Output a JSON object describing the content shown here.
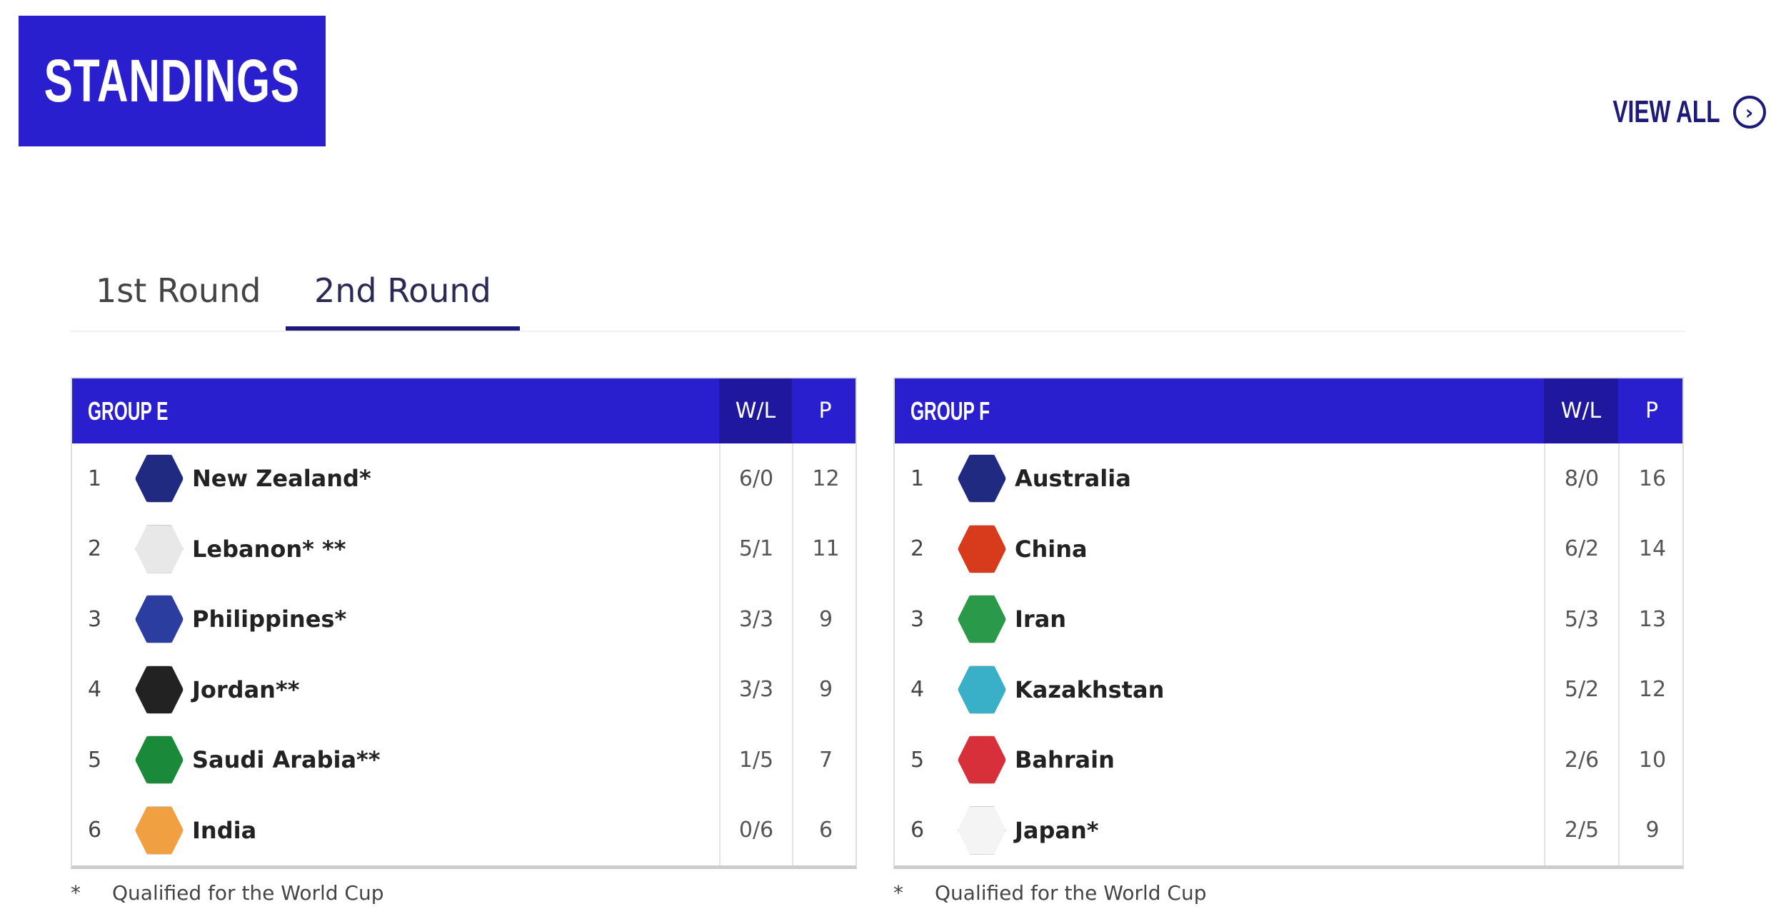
{
  "title": "STANDINGS",
  "view_all": {
    "label": "VIEW ALL",
    "icon": "chevron-right-circle-icon"
  },
  "tabs": [
    {
      "label": "1st Round",
      "active": false
    },
    {
      "label": "2nd Round",
      "active": true
    }
  ],
  "colors": {
    "primary": "#2a1fcf",
    "header_dark": "#1f189e",
    "accent": "#1d1a7a"
  },
  "groups": [
    {
      "name": "GROUP E",
      "col_wl": "W/L",
      "col_p": "P",
      "rows": [
        {
          "rank": "1",
          "team": "New Zealand*",
          "wl": "6/0",
          "p": "12",
          "flag": "new-zealand-flag-icon",
          "color": "#1f2a80"
        },
        {
          "rank": "2",
          "team": "Lebanon* **",
          "wl": "5/1",
          "p": "11",
          "flag": "lebanon-flag-icon",
          "color": "#e8e8e8"
        },
        {
          "rank": "3",
          "team": "Philippines*",
          "wl": "3/3",
          "p": "9",
          "flag": "philippines-flag-icon",
          "color": "#2b3ea0"
        },
        {
          "rank": "4",
          "team": "Jordan**",
          "wl": "3/3",
          "p": "9",
          "flag": "jordan-flag-icon",
          "color": "#222222"
        },
        {
          "rank": "5",
          "team": "Saudi Arabia**",
          "wl": "1/5",
          "p": "7",
          "flag": "saudi-arabia-flag-icon",
          "color": "#1a8a3a"
        },
        {
          "rank": "6",
          "team": "India",
          "wl": "0/6",
          "p": "6",
          "flag": "india-flag-icon",
          "color": "#f0a040"
        }
      ],
      "footnote_mark": "*",
      "footnote": "Qualified for the World Cup"
    },
    {
      "name": "GROUP F",
      "col_wl": "W/L",
      "col_p": "P",
      "rows": [
        {
          "rank": "1",
          "team": "Australia",
          "wl": "8/0",
          "p": "16",
          "flag": "australia-flag-icon",
          "color": "#1f2a80"
        },
        {
          "rank": "2",
          "team": "China",
          "wl": "6/2",
          "p": "14",
          "flag": "china-flag-icon",
          "color": "#d83a1c"
        },
        {
          "rank": "3",
          "team": "Iran",
          "wl": "5/3",
          "p": "13",
          "flag": "iran-flag-icon",
          "color": "#2a9a4a"
        },
        {
          "rank": "4",
          "team": "Kazakhstan",
          "wl": "5/2",
          "p": "12",
          "flag": "kazakhstan-flag-icon",
          "color": "#3ab0c8"
        },
        {
          "rank": "5",
          "team": "Bahrain",
          "wl": "2/6",
          "p": "10",
          "flag": "bahrain-flag-icon",
          "color": "#d8303a"
        },
        {
          "rank": "6",
          "team": "Japan*",
          "wl": "2/5",
          "p": "9",
          "flag": "japan-flag-icon",
          "color": "#f4f4f4"
        }
      ],
      "footnote_mark": "*",
      "footnote": "Qualified for the World Cup"
    }
  ]
}
